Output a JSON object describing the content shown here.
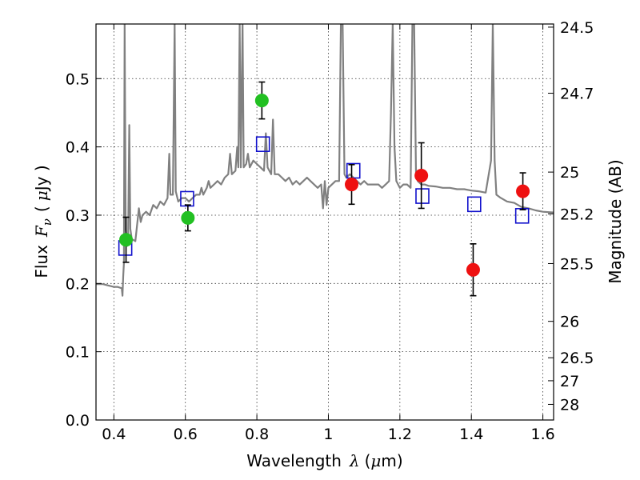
{
  "chart_data": {
    "type": "scatter",
    "title": "",
    "xlabel": "Wavelength",
    "xlabel_symbol": "λ",
    "xlabel_unit_open": "(",
    "xlabel_unit_mu": "μ",
    "xlabel_unit_rest": "m)",
    "ylabel": "Flux",
    "ylabel_symbol": "F",
    "ylabel_sub": "ν",
    "ylabel_unit_open": "(",
    "ylabel_unit_mu": "μ",
    "ylabel_unit_rest": "Jy )",
    "y2label": "Magnitude (AB)",
    "xlim": [
      0.35,
      1.63
    ],
    "ylim": [
      0.0,
      0.58
    ],
    "grid": true,
    "x_ticks": [
      {
        "value": 0.4,
        "label": "0.4"
      },
      {
        "value": 0.6,
        "label": "0.6"
      },
      {
        "value": 0.8,
        "label": "0.8"
      },
      {
        "value": 1.0,
        "label": "1"
      },
      {
        "value": 1.2,
        "label": "1.2"
      },
      {
        "value": 1.4,
        "label": "1.4"
      },
      {
        "value": 1.6,
        "label": "1.6"
      }
    ],
    "y_ticks": [
      {
        "value": 0.0,
        "label": "0.0"
      },
      {
        "value": 0.1,
        "label": "0.1"
      },
      {
        "value": 0.2,
        "label": "0.2"
      },
      {
        "value": 0.3,
        "label": "0.3"
      },
      {
        "value": 0.4,
        "label": "0.4"
      },
      {
        "value": 0.5,
        "label": "0.5"
      }
    ],
    "y2_ticks": [
      {
        "flux": 0.5754,
        "label": "24.5"
      },
      {
        "flux": 0.4786,
        "label": "24.7"
      },
      {
        "flux": 0.3631,
        "label": "25"
      },
      {
        "flux": 0.302,
        "label": "25.2"
      },
      {
        "flux": 0.2291,
        "label": "25.5"
      },
      {
        "flux": 0.1445,
        "label": "26"
      },
      {
        "flux": 0.0912,
        "label": "26.5"
      },
      {
        "flux": 0.0575,
        "label": "27"
      },
      {
        "flux": 0.0229,
        "label": "28"
      }
    ],
    "series": [
      {
        "kind": "line",
        "color": "#808080",
        "points": [
          [
            0.35,
            0.199
          ],
          [
            0.37,
            0.199
          ],
          [
            0.385,
            0.197
          ],
          [
            0.4,
            0.195
          ],
          [
            0.41,
            0.195
          ],
          [
            0.422,
            0.193
          ],
          [
            0.424,
            0.182
          ],
          [
            0.426,
            0.21
          ],
          [
            0.428,
            0.23
          ],
          [
            0.43,
            0.58
          ],
          [
            0.433,
            0.28
          ],
          [
            0.437,
            0.255
          ],
          [
            0.44,
            0.27
          ],
          [
            0.443,
            0.432
          ],
          [
            0.446,
            0.28
          ],
          [
            0.45,
            0.265
          ],
          [
            0.46,
            0.262
          ],
          [
            0.47,
            0.31
          ],
          [
            0.475,
            0.29
          ],
          [
            0.48,
            0.3
          ],
          [
            0.49,
            0.305
          ],
          [
            0.5,
            0.3
          ],
          [
            0.51,
            0.315
          ],
          [
            0.52,
            0.31
          ],
          [
            0.53,
            0.32
          ],
          [
            0.54,
            0.315
          ],
          [
            0.55,
            0.325
          ],
          [
            0.555,
            0.39
          ],
          [
            0.558,
            0.33
          ],
          [
            0.565,
            0.33
          ],
          [
            0.57,
            0.58
          ],
          [
            0.573,
            0.335
          ],
          [
            0.58,
            0.32
          ],
          [
            0.59,
            0.325
          ],
          [
            0.6,
            0.325
          ],
          [
            0.61,
            0.32
          ],
          [
            0.62,
            0.325
          ],
          [
            0.63,
            0.33
          ],
          [
            0.64,
            0.33
          ],
          [
            0.645,
            0.34
          ],
          [
            0.65,
            0.33
          ],
          [
            0.66,
            0.34
          ],
          [
            0.665,
            0.35
          ],
          [
            0.67,
            0.34
          ],
          [
            0.68,
            0.345
          ],
          [
            0.69,
            0.35
          ],
          [
            0.7,
            0.345
          ],
          [
            0.71,
            0.355
          ],
          [
            0.72,
            0.36
          ],
          [
            0.725,
            0.39
          ],
          [
            0.73,
            0.36
          ],
          [
            0.74,
            0.365
          ],
          [
            0.745,
            0.4
          ],
          [
            0.748,
            0.37
          ],
          [
            0.752,
            0.58
          ],
          [
            0.755,
            0.37
          ],
          [
            0.76,
            0.58
          ],
          [
            0.763,
            0.37
          ],
          [
            0.77,
            0.375
          ],
          [
            0.775,
            0.39
          ],
          [
            0.78,
            0.37
          ],
          [
            0.79,
            0.38
          ],
          [
            0.8,
            0.375
          ],
          [
            0.81,
            0.37
          ],
          [
            0.82,
            0.365
          ],
          [
            0.825,
            0.42
          ],
          [
            0.83,
            0.37
          ],
          [
            0.84,
            0.36
          ],
          [
            0.845,
            0.44
          ],
          [
            0.85,
            0.36
          ],
          [
            0.86,
            0.36
          ],
          [
            0.87,
            0.355
          ],
          [
            0.88,
            0.35
          ],
          [
            0.89,
            0.355
          ],
          [
            0.9,
            0.345
          ],
          [
            0.91,
            0.35
          ],
          [
            0.92,
            0.345
          ],
          [
            0.93,
            0.35
          ],
          [
            0.94,
            0.355
          ],
          [
            0.95,
            0.35
          ],
          [
            0.96,
            0.345
          ],
          [
            0.97,
            0.34
          ],
          [
            0.98,
            0.345
          ],
          [
            0.985,
            0.31
          ],
          [
            0.99,
            0.35
          ],
          [
            0.995,
            0.315
          ],
          [
            1.0,
            0.34
          ],
          [
            1.01,
            0.345
          ],
          [
            1.02,
            0.35
          ],
          [
            1.03,
            0.35
          ],
          [
            1.035,
            0.58
          ],
          [
            1.04,
            0.58
          ],
          [
            1.045,
            0.36
          ],
          [
            1.05,
            0.355
          ],
          [
            1.06,
            0.36
          ],
          [
            1.07,
            0.355
          ],
          [
            1.08,
            0.35
          ],
          [
            1.09,
            0.345
          ],
          [
            1.1,
            0.35
          ],
          [
            1.11,
            0.345
          ],
          [
            1.12,
            0.345
          ],
          [
            1.13,
            0.345
          ],
          [
            1.14,
            0.345
          ],
          [
            1.15,
            0.34
          ],
          [
            1.16,
            0.345
          ],
          [
            1.17,
            0.35
          ],
          [
            1.175,
            0.45
          ],
          [
            1.18,
            0.58
          ],
          [
            1.185,
            0.4
          ],
          [
            1.19,
            0.35
          ],
          [
            1.2,
            0.34
          ],
          [
            1.21,
            0.345
          ],
          [
            1.22,
            0.345
          ],
          [
            1.23,
            0.34
          ],
          [
            1.235,
            0.58
          ],
          [
            1.24,
            0.58
          ],
          [
            1.245,
            0.36
          ],
          [
            1.25,
            0.35
          ],
          [
            1.26,
            0.345
          ],
          [
            1.27,
            0.345
          ],
          [
            1.28,
            0.343
          ],
          [
            1.3,
            0.342
          ],
          [
            1.32,
            0.34
          ],
          [
            1.34,
            0.34
          ],
          [
            1.36,
            0.338
          ],
          [
            1.38,
            0.338
          ],
          [
            1.4,
            0.336
          ],
          [
            1.42,
            0.335
          ],
          [
            1.44,
            0.333
          ],
          [
            1.455,
            0.38
          ],
          [
            1.46,
            0.58
          ],
          [
            1.465,
            0.38
          ],
          [
            1.47,
            0.33
          ],
          [
            1.48,
            0.326
          ],
          [
            1.5,
            0.32
          ],
          [
            1.52,
            0.318
          ],
          [
            1.54,
            0.312
          ],
          [
            1.56,
            0.31
          ],
          [
            1.58,
            0.307
          ],
          [
            1.6,
            0.305
          ],
          [
            1.63,
            0.304
          ]
        ]
      },
      {
        "kind": "marker-circle",
        "color": "#22c022",
        "points": [
          {
            "x": 0.434,
            "y": 0.264,
            "err": 0.033
          },
          {
            "x": 0.607,
            "y": 0.296,
            "err": 0.019
          },
          {
            "x": 0.814,
            "y": 0.468,
            "err": 0.027
          }
        ]
      },
      {
        "kind": "marker-circle",
        "color": "#ee1111",
        "points": [
          {
            "x": 1.065,
            "y": 0.345,
            "err": 0.029
          },
          {
            "x": 1.26,
            "y": 0.358,
            "err": 0.048
          },
          {
            "x": 1.405,
            "y": 0.22,
            "err": 0.038
          },
          {
            "x": 1.544,
            "y": 0.335,
            "err": 0.027
          }
        ]
      },
      {
        "kind": "marker-square",
        "color": "#1111cc",
        "points": [
          {
            "x": 0.432,
            "y": 0.252
          },
          {
            "x": 0.605,
            "y": 0.324
          },
          {
            "x": 0.817,
            "y": 0.404
          },
          {
            "x": 1.07,
            "y": 0.365
          },
          {
            "x": 1.263,
            "y": 0.328
          },
          {
            "x": 1.408,
            "y": 0.316
          },
          {
            "x": 1.542,
            "y": 0.299
          }
        ]
      }
    ]
  }
}
